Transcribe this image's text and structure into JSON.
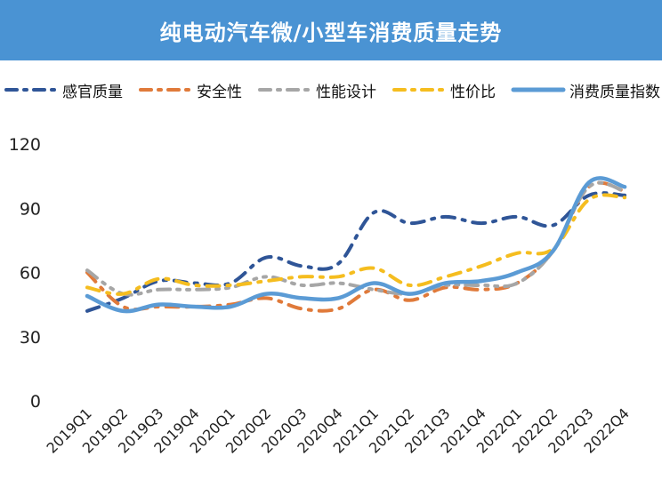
{
  "header": {
    "title": "纯电动汽车微/小型车消费质量走势"
  },
  "colors": {
    "banner": "#4a93d3",
    "感官质量": "#2f5597",
    "安全性": "#e07a3a",
    "性能设计": "#a6a6a6",
    "性价比": "#f5bd1f",
    "消费质量指数": "#5b9bd5"
  },
  "chart_data": {
    "type": "line",
    "title": "纯电动汽车微/小型车消费质量走势",
    "xlabel": "",
    "ylabel": "",
    "ylim": [
      0,
      120
    ],
    "yticks": [
      "0",
      "30",
      "60",
      "90",
      "120"
    ],
    "grid": false,
    "legend_position": "top",
    "categories": [
      "2019Q1",
      "2019Q2",
      "2019Q3",
      "2019Q4",
      "2020Q1",
      "2020Q2",
      "2020Q3",
      "2020Q4",
      "2021Q1",
      "2021Q2",
      "2021Q3",
      "2021Q4",
      "2022Q1",
      "2022Q2",
      "2022Q3",
      "2022Q4"
    ],
    "series": [
      {
        "name": "感官质量",
        "style": "dash-dot",
        "values": [
          42,
          48,
          56,
          55,
          55,
          67,
          63,
          64,
          88,
          83,
          86,
          83,
          86,
          82,
          96,
          96
        ]
      },
      {
        "name": "安全性",
        "style": "dash-dot",
        "values": [
          60,
          44,
          44,
          44,
          45,
          48,
          43,
          43,
          52,
          47,
          53,
          52,
          55,
          70,
          100,
          98
        ]
      },
      {
        "name": "性能设计",
        "style": "dash-dot-dot",
        "values": [
          61,
          50,
          52,
          52,
          53,
          58,
          54,
          55,
          52,
          50,
          54,
          54,
          55,
          70,
          100,
          98
        ]
      },
      {
        "name": "性价比",
        "style": "dash-dot",
        "values": [
          53,
          50,
          57,
          54,
          54,
          56,
          58,
          58,
          62,
          54,
          58,
          63,
          69,
          71,
          94,
          95
        ]
      },
      {
        "name": "消费质量指数",
        "style": "solid",
        "values": [
          49,
          42,
          45,
          44,
          44,
          50,
          48,
          48,
          55,
          50,
          55,
          56,
          60,
          70,
          102,
          100
        ]
      }
    ]
  }
}
